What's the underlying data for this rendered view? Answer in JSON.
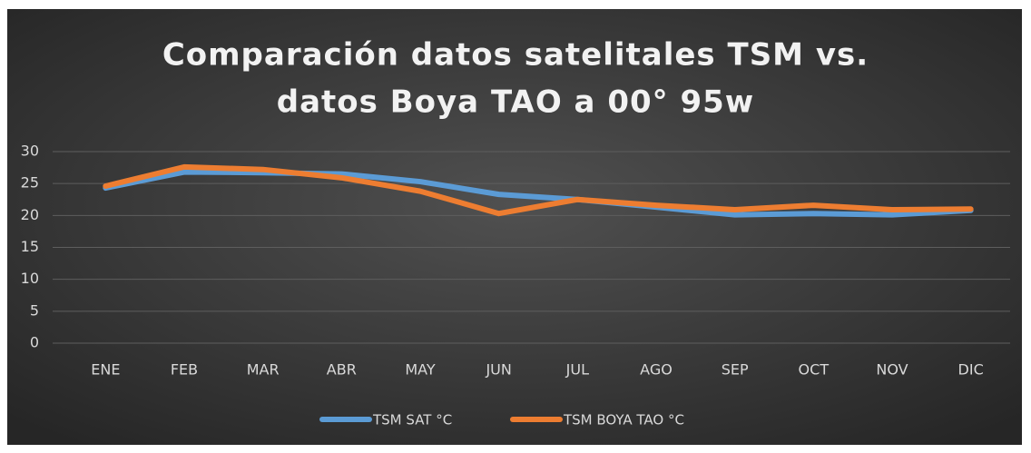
{
  "chart_data": {
    "type": "line",
    "title": [
      "Comparación datos satelitales TSM vs.",
      "datos Boya TAO a 00° 95w"
    ],
    "categories": [
      "ENE",
      "FEB",
      "MAR",
      "ABR",
      "MAY",
      "JUN",
      "JUL",
      "AGO",
      "SEP",
      "OCT",
      "NOV",
      "DIC"
    ],
    "series": [
      {
        "name": "TSM SAT °C",
        "color": "#5b9bd5",
        "values": [
          24.3,
          26.8,
          26.7,
          26.5,
          25.3,
          23.3,
          22.5,
          21.3,
          20.1,
          20.3,
          20.1,
          20.8
        ]
      },
      {
        "name": "TSM BOYA TAO °C",
        "color": "#ed7d31",
        "values": [
          24.6,
          27.6,
          27.2,
          25.9,
          23.8,
          20.3,
          22.5,
          21.6,
          20.9,
          21.6,
          20.9,
          21.0
        ]
      }
    ],
    "ylim": [
      0,
      30
    ],
    "yticks": [
      0,
      5,
      10,
      15,
      20,
      25,
      30
    ],
    "grid": true,
    "legend": "bottom"
  }
}
